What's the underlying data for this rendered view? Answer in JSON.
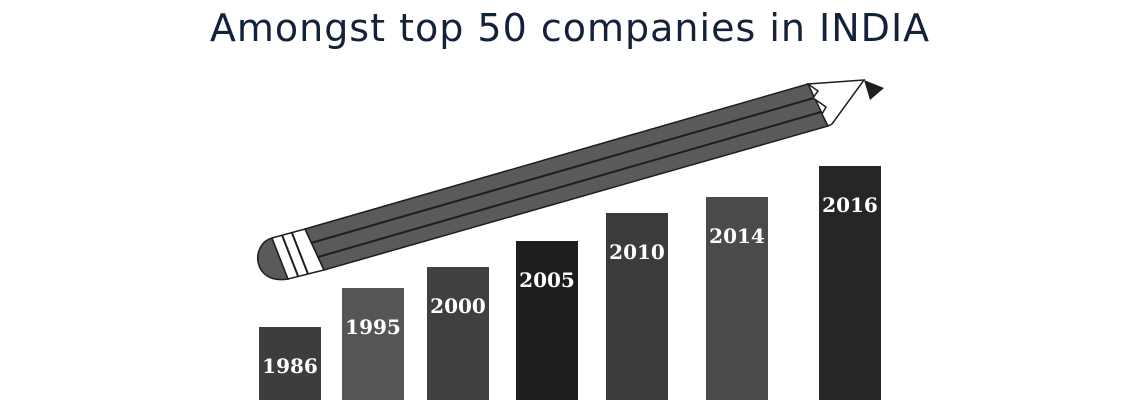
{
  "title": "Amongst top 50 companies in INDIA",
  "colors": {
    "title": "#14213a",
    "bar_label": "#ffffff",
    "pencil_body": "#5a5a5a",
    "pencil_outline": "#1e1e1e",
    "pencil_lead": "#1e1e1e",
    "pencil_wood": "#ffffff"
  },
  "chart_data": {
    "type": "bar",
    "title": "Amongst top 50 companies in INDIA",
    "xlabel": "",
    "ylabel": "",
    "grid": false,
    "legend": "none",
    "categories": [
      "1986",
      "1995",
      "2000",
      "2005",
      "2010",
      "2014",
      "2016"
    ],
    "values": [
      73,
      112,
      133,
      159,
      187,
      203,
      234
    ],
    "bar_colors": [
      "#3d3d3d",
      "#555555",
      "#404040",
      "#1e1e1e",
      "#3b3b3b",
      "#4a4a4a",
      "#262626"
    ],
    "ylim": [
      0,
      234
    ]
  }
}
